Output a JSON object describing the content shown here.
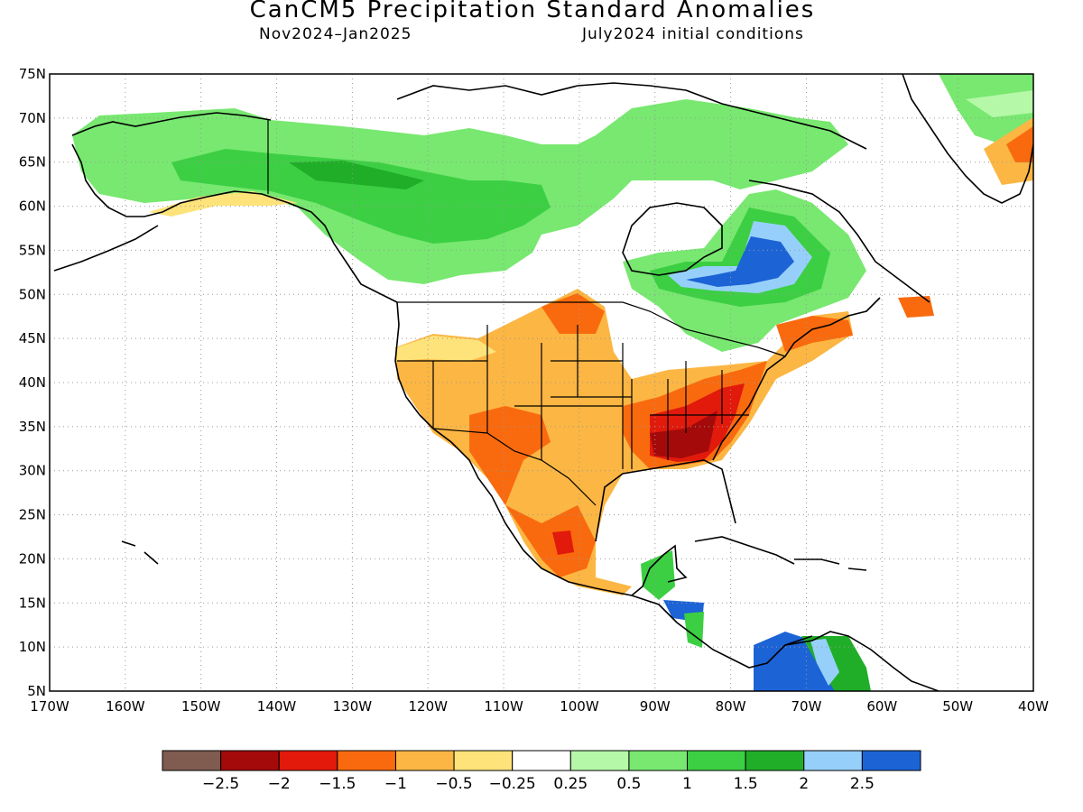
{
  "header": {
    "title": "CanCM5 Precipitation Standard Anomalies",
    "period": "Nov2024–Jan2025",
    "initial_conditions": "July2024 initial conditions"
  },
  "axes": {
    "lat_labels": [
      "75N",
      "70N",
      "65N",
      "60N",
      "55N",
      "50N",
      "45N",
      "40N",
      "35N",
      "30N",
      "25N",
      "20N",
      "15N",
      "10N",
      "5N"
    ],
    "lon_labels": [
      "170W",
      "160W",
      "150W",
      "140W",
      "130W",
      "120W",
      "110W",
      "100W",
      "90W",
      "80W",
      "70W",
      "60W",
      "50W",
      "40W"
    ],
    "lat_range": [
      5,
      75
    ],
    "lon_range": [
      -170,
      -40
    ],
    "grid": "dotted"
  },
  "colorbar": {
    "colors": [
      "#7f5b50",
      "#a50a0a",
      "#e11a0c",
      "#f96a0e",
      "#fcb643",
      "#fde37a",
      "#ffffff",
      "#b5f8a8",
      "#78e870",
      "#3ccf43",
      "#20ae28",
      "#96d0fa",
      "#1c63d6"
    ],
    "labels": [
      "−2.5",
      "−2",
      "−1.5",
      "−1",
      "−0.5",
      "−0.25",
      "0.25",
      "0.5",
      "1",
      "1.5",
      "2",
      "2.5"
    ]
  }
}
